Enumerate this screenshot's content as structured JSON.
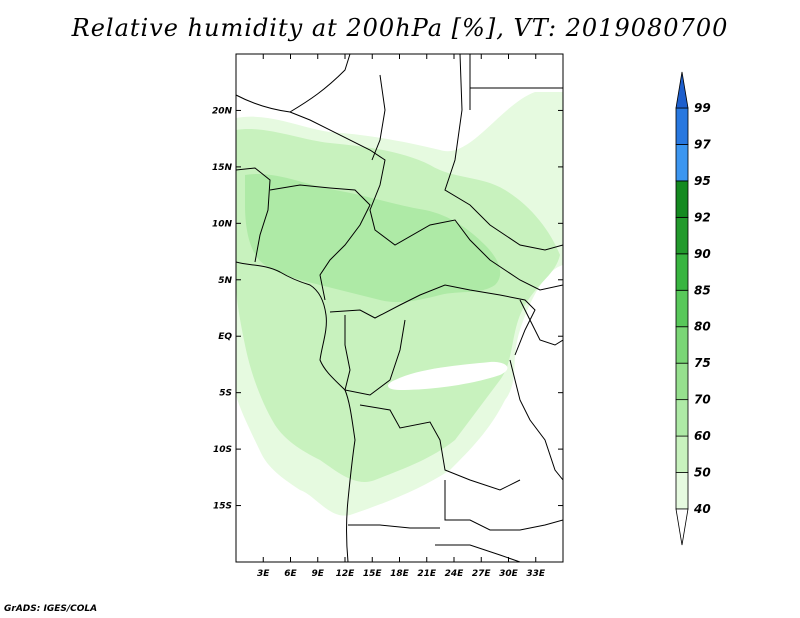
{
  "title": "Relative humidity at 200hPa [%], VT: 2019080700",
  "credit": "GrADS: IGES/COLA",
  "map": {
    "lon_range": [
      0,
      36
    ],
    "lat_range": [
      -20,
      25
    ],
    "lat_ticks": [
      {
        "value": 20,
        "label": "20N"
      },
      {
        "value": 15,
        "label": "15N"
      },
      {
        "value": 10,
        "label": "10N"
      },
      {
        "value": 5,
        "label": "5N"
      },
      {
        "value": 0,
        "label": "EQ"
      },
      {
        "value": -5,
        "label": "5S"
      },
      {
        "value": -10,
        "label": "10S"
      },
      {
        "value": -15,
        "label": "15S"
      }
    ],
    "lon_ticks": [
      {
        "value": 3,
        "label": "3E"
      },
      {
        "value": 6,
        "label": "6E"
      },
      {
        "value": 9,
        "label": "9E"
      },
      {
        "value": 12,
        "label": "12E"
      },
      {
        "value": 15,
        "label": "15E"
      },
      {
        "value": 18,
        "label": "18E"
      },
      {
        "value": 21,
        "label": "21E"
      },
      {
        "value": 24,
        "label": "24E"
      },
      {
        "value": 27,
        "label": "27E"
      },
      {
        "value": 30,
        "label": "30E"
      },
      {
        "value": 33,
        "label": "33E"
      }
    ]
  },
  "colorbar": {
    "levels": [
      "40",
      "50",
      "60",
      "70",
      "75",
      "80",
      "85",
      "90",
      "92",
      "95",
      "97",
      "99"
    ],
    "colors": [
      "#ffffff",
      "#e6fae0",
      "#c8f2be",
      "#aeeaa6",
      "#96e08e",
      "#7ad676",
      "#58c85a",
      "#38b540",
      "#229a2c",
      "#148a20",
      "#3c96f0",
      "#2878e0",
      "#1e5fcc"
    ]
  },
  "colors": {
    "rh_50": "#e6fae0",
    "rh_60": "#c8f2be",
    "rh_70": "#aeeaa6"
  }
}
